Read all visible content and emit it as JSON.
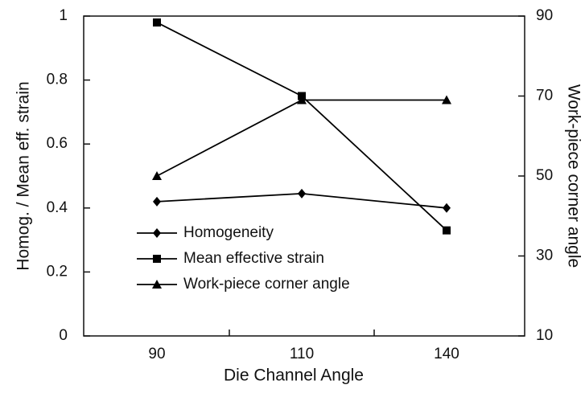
{
  "chart_data": {
    "type": "line",
    "x_label": "Die Channel Angle",
    "y_label": "Homog. / Mean eff. strain",
    "y2_label": "Work-piece corner angle",
    "categories": [
      "90",
      "110",
      "140"
    ],
    "series": [
      {
        "name": "Homogeneity",
        "color": "#000000",
        "marker": "diamond",
        "values": [
          0.42,
          0.445,
          0.4
        ]
      },
      {
        "name": "Mean effective strain",
        "color": "#000000",
        "marker": "square",
        "values": [
          0.98,
          0.75,
          0.33
        ]
      },
      {
        "name": "Work-piece corner angle",
        "color": "#000000",
        "marker": "triangle",
        "axis": "y2",
        "values": [
          50,
          69,
          69
        ]
      }
    ],
    "ylim": [
      0,
      1
    ],
    "yticks": [
      0,
      0.2,
      0.4,
      0.6,
      0.8,
      1
    ],
    "y2lim": [
      10,
      90
    ],
    "y2ticks": [
      10,
      30,
      50,
      70,
      90
    ],
    "grid": false,
    "legend": "lower left"
  }
}
